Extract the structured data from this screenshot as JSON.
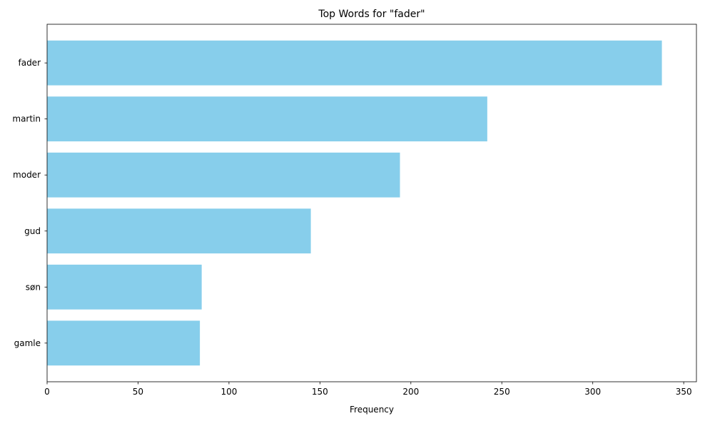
{
  "chart_data": {
    "type": "bar",
    "orientation": "horizontal",
    "title": "Top Words for \"fader\"",
    "xlabel": "Frequency",
    "ylabel": "",
    "categories": [
      "fader",
      "martin",
      "moder",
      "gud",
      "søn",
      "gamle"
    ],
    "values": [
      338,
      242,
      194,
      145,
      85,
      84
    ],
    "xlim": [
      0,
      357
    ],
    "xticks": [
      0,
      50,
      100,
      150,
      200,
      250,
      300,
      350
    ],
    "bar_color": "#87ceeb",
    "grid": false,
    "legend": "none"
  }
}
